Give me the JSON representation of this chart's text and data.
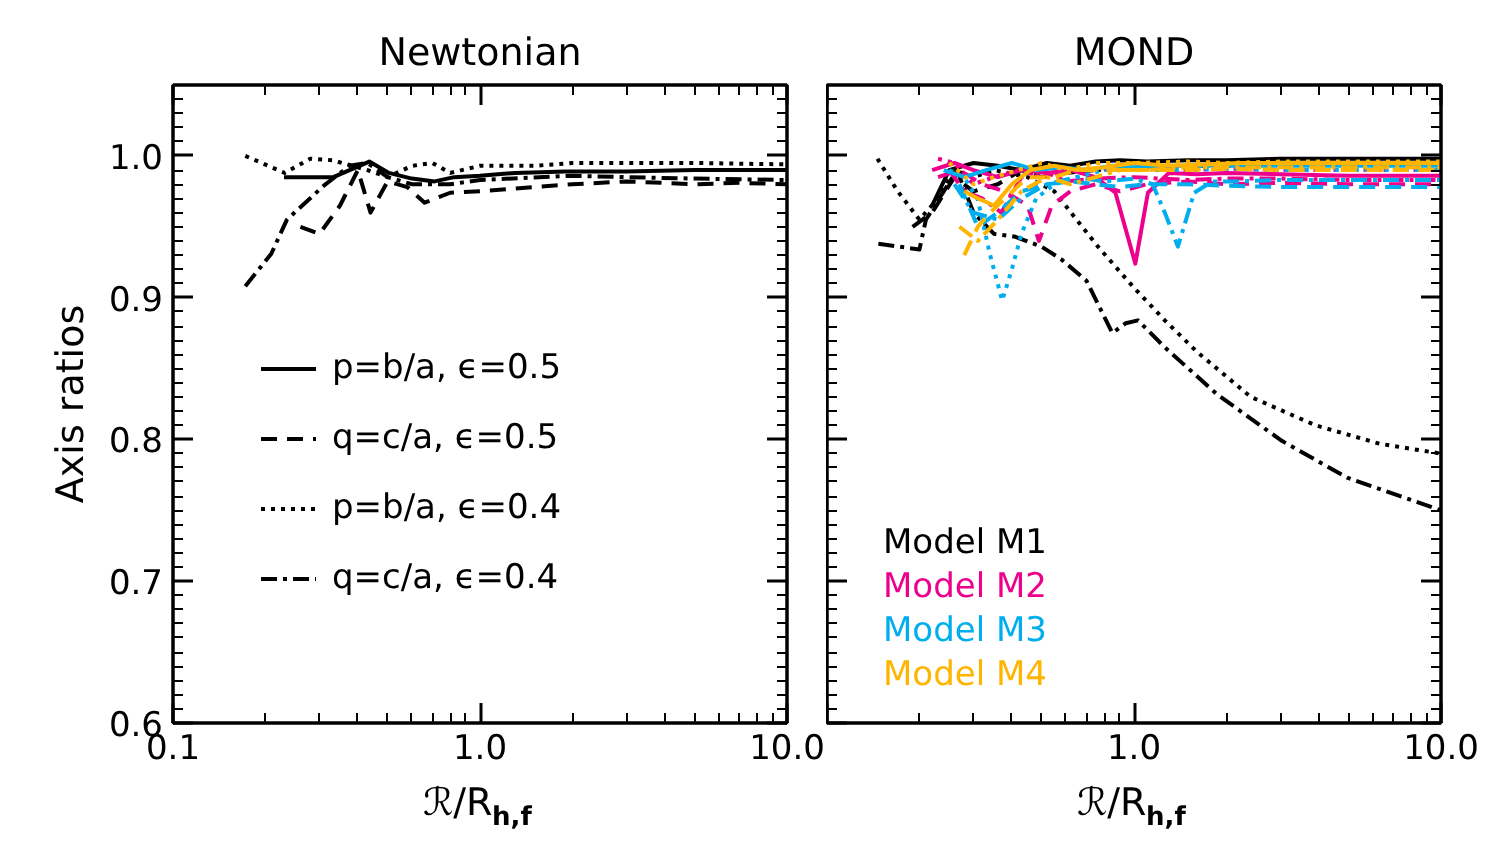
{
  "chart_data": [
    {
      "type": "line",
      "title": "Newtonian",
      "xlabel": "ℛ/R$_{h,f}$",
      "ylabel": "Axis ratios",
      "log": "x",
      "xlim": [
        0.1,
        10
      ],
      "ylim": [
        0.6,
        1.05
      ],
      "xticks": [
        0.1,
        {
          "value": 1,
          "label": "1.0"
        },
        {
          "value": 10,
          "label": "10.0"
        }
      ],
      "yticks": [
        0.6,
        0.7,
        0.8,
        0.9,
        {
          "value": 1.0,
          "label": "1.0"
        }
      ],
      "legend": "left",
      "series": [
        {
          "name": "p=b/a, ϵ=0.5",
          "color": "#000000",
          "line_style": "solid",
          "x": [
            0.23,
            0.333,
            0.436,
            0.505,
            0.6,
            0.711,
            0.824,
            1.0,
            1.3,
            1.9,
            3,
            5,
            7,
            10
          ],
          "values": [
            0.985,
            0.985,
            0.996,
            0.988,
            0.984,
            0.982,
            0.985,
            0.986,
            0.988,
            0.989,
            0.989,
            0.99,
            0.99,
            0.99
          ]
        },
        {
          "name": "q=c/a, ϵ=0.5",
          "color": "#000000",
          "line_style": "dashed",
          "x": [
            0.26,
            0.3,
            0.35,
            0.4,
            0.44,
            0.5,
            0.58,
            0.66,
            0.8,
            1.0,
            1.5,
            2,
            3,
            5,
            7,
            10
          ],
          "values": [
            0.95,
            0.945,
            0.965,
            0.99,
            0.96,
            0.982,
            0.978,
            0.967,
            0.974,
            0.975,
            0.978,
            0.98,
            0.982,
            0.98,
            0.981,
            0.98
          ]
        },
        {
          "name": "p=b/a, ϵ=0.4",
          "color": "#000000",
          "line_style": "dotted",
          "x": [
            0.172,
            0.231,
            0.28,
            0.33,
            0.43,
            0.5,
            0.6,
            0.7,
            0.8,
            1.0,
            1.5,
            2,
            3,
            5,
            10
          ],
          "values": [
            1.0,
            0.988,
            0.998,
            0.997,
            0.99,
            0.985,
            0.993,
            0.995,
            0.988,
            0.993,
            0.993,
            0.995,
            0.995,
            0.995,
            0.994
          ]
        },
        {
          "name": "q=c/a, ϵ=0.4",
          "color": "#000000",
          "line_style": "dashdot",
          "x": [
            0.172,
            0.209,
            0.235,
            0.31,
            0.376,
            0.43,
            0.5,
            0.6,
            0.8,
            1.0,
            2,
            3,
            5,
            10
          ],
          "values": [
            0.908,
            0.931,
            0.955,
            0.979,
            0.993,
            0.995,
            0.985,
            0.98,
            0.98,
            0.983,
            0.986,
            0.985,
            0.984,
            0.983
          ]
        }
      ]
    },
    {
      "type": "line",
      "title": "MOND",
      "xlabel": "ℛ/R$_{h,f}$",
      "log": "x",
      "xlim": [
        0.1,
        10
      ],
      "ylim": [
        0.6,
        1.05
      ],
      "xticks": [
        {
          "value": 0.1,
          "label": null
        },
        {
          "value": 1,
          "label": "1.0"
        },
        {
          "value": 10,
          "label": "10.0"
        }
      ],
      "yticks": [
        0.6,
        0.7,
        0.8,
        0.9,
        1.0
      ],
      "tick_labels": "x",
      "legend": "bottom left",
      "series": [
        {
          "name": "Model M1",
          "color": "#000000",
          "line_style": "solid",
          "x": [
            0.22,
            0.25,
            0.3,
            0.36,
            0.43,
            0.52,
            0.62,
            0.75,
            0.9,
            1.1,
            1.5,
            2,
            3,
            5,
            10
          ],
          "values": [
            0.965,
            0.99,
            0.995,
            0.993,
            0.99,
            0.995,
            0.993,
            0.996,
            0.997,
            0.996,
            0.997,
            0.997,
            0.998,
            0.998,
            0.998
          ]
        },
        {
          "color": "#000000",
          "line_style": "dashed",
          "x": [
            0.19,
            0.22,
            0.26,
            0.3,
            0.36,
            0.43,
            0.5,
            0.6,
            0.75,
            1,
            1.5,
            2,
            3,
            5,
            10
          ],
          "values": [
            0.95,
            0.96,
            0.985,
            0.975,
            0.98,
            0.99,
            0.985,
            0.988,
            0.99,
            0.992,
            0.993,
            0.993,
            0.994,
            0.994,
            0.994
          ]
        },
        {
          "color": "#000000",
          "line_style": "dotted",
          "x": [
            0.146,
            0.17,
            0.2,
            0.23,
            0.26,
            0.3,
            0.35,
            0.45,
            0.55,
            0.65,
            0.77,
            1.0,
            1.26,
            1.6,
            2.4,
            3.9,
            6.3,
            10
          ],
          "values": [
            0.998,
            0.975,
            0.955,
            0.97,
            0.99,
            0.985,
            0.99,
            0.985,
            0.975,
            0.955,
            0.935,
            0.907,
            0.884,
            0.862,
            0.83,
            0.81,
            0.797,
            0.79
          ]
        },
        {
          "color": "#000000",
          "line_style": "dashdot",
          "x": [
            0.147,
            0.2,
            0.21,
            0.24,
            0.265,
            0.3,
            0.35,
            0.41,
            0.5,
            0.58,
            0.7,
            0.85,
            0.94,
            1.03,
            1.26,
            1.86,
            3.03,
            4.95,
            10
          ],
          "values": [
            0.938,
            0.934,
            0.955,
            0.975,
            0.99,
            0.96,
            0.945,
            0.943,
            0.936,
            0.927,
            0.912,
            0.875,
            0.882,
            0.884,
            0.865,
            0.832,
            0.799,
            0.773,
            0.75
          ]
        },
        {
          "name": "Model M2",
          "color": "#ec008c",
          "line_style": "solid",
          "x": [
            0.22,
            0.26,
            0.3,
            0.36,
            0.43,
            0.52,
            0.62,
            0.75,
            0.87,
            1.01,
            1.11,
            1.3,
            1.6,
            2,
            3,
            5,
            10
          ],
          "values": [
            0.99,
            0.995,
            0.99,
            0.985,
            0.99,
            0.988,
            0.99,
            0.985,
            0.974,
            0.924,
            0.974,
            0.988,
            0.987,
            0.988,
            0.987,
            0.986,
            0.986
          ]
        },
        {
          "color": "#ec008c",
          "line_style": "dashed",
          "x": [
            0.23,
            0.27,
            0.32,
            0.38,
            0.45,
            0.49,
            0.54,
            0.62,
            0.75,
            0.9,
            1.1,
            1.5,
            2,
            3,
            5,
            10
          ],
          "values": [
            0.985,
            0.99,
            0.98,
            0.975,
            0.965,
            0.94,
            0.965,
            0.975,
            0.98,
            0.975,
            0.98,
            0.982,
            0.98,
            0.981,
            0.98,
            0.98
          ]
        },
        {
          "color": "#ec008c",
          "line_style": "dotted",
          "x": [
            0.23,
            0.26,
            0.3,
            0.35,
            0.42,
            0.5,
            0.6,
            0.75,
            1,
            1.5,
            2,
            3,
            5,
            10
          ],
          "values": [
            0.998,
            0.995,
            0.98,
            0.985,
            0.99,
            0.985,
            0.99,
            0.99,
            0.992,
            0.99,
            0.991,
            0.99,
            0.99,
            0.99
          ]
        },
        {
          "color": "#ec008c",
          "line_style": "dashdot",
          "x": [
            0.25,
            0.28,
            0.32,
            0.37,
            0.43,
            0.5,
            0.6,
            0.75,
            1,
            1.5,
            2,
            3,
            5,
            10
          ],
          "values": [
            0.99,
            0.975,
            0.97,
            0.96,
            0.985,
            0.99,
            0.982,
            0.984,
            0.985,
            0.983,
            0.984,
            0.984,
            0.983,
            0.983
          ]
        },
        {
          "name": "Model M3",
          "color": "#00aeef",
          "line_style": "solid",
          "x": [
            0.24,
            0.28,
            0.33,
            0.4,
            0.48,
            0.58,
            0.7,
            0.85,
            1,
            1.3,
            1.7,
            2.2,
            3,
            5,
            10
          ],
          "values": [
            0.99,
            0.985,
            0.99,
            0.995,
            0.99,
            0.992,
            0.99,
            0.993,
            0.992,
            0.993,
            0.993,
            0.993,
            0.993,
            0.993,
            0.993
          ]
        },
        {
          "color": "#00aeef",
          "line_style": "dashed",
          "x": [
            0.27,
            0.31,
            0.36,
            0.43,
            0.52,
            0.62,
            0.75,
            0.9,
            1.1,
            1.5,
            2,
            3,
            5,
            10
          ],
          "values": [
            0.98,
            0.95,
            0.96,
            0.975,
            0.98,
            0.982,
            0.98,
            0.978,
            0.98,
            0.98,
            0.979,
            0.978,
            0.978,
            0.978
          ]
        },
        {
          "color": "#00aeef",
          "line_style": "dotted",
          "x": [
            0.25,
            0.28,
            0.31,
            0.34,
            0.372,
            0.4,
            0.43,
            0.48,
            0.55,
            0.65,
            0.8,
            1,
            1.5,
            2,
            3,
            5,
            10
          ],
          "values": [
            0.99,
            0.985,
            0.969,
            0.93,
            0.898,
            0.92,
            0.945,
            0.97,
            0.98,
            0.985,
            0.99,
            0.99,
            0.99,
            0.991,
            0.99,
            0.99,
            0.99
          ]
        },
        {
          "color": "#00aeef",
          "line_style": "dashdot",
          "x": [
            0.26,
            0.3,
            0.36,
            0.43,
            0.52,
            0.65,
            0.8,
            1,
            1.15,
            1.26,
            1.39,
            1.57,
            1.8,
            2.2,
            3,
            5,
            10
          ],
          "values": [
            0.98,
            0.96,
            0.955,
            0.97,
            0.98,
            0.985,
            0.982,
            0.984,
            0.98,
            0.96,
            0.936,
            0.974,
            0.982,
            0.982,
            0.983,
            0.983,
            0.983
          ]
        },
        {
          "name": "Model M4",
          "color": "#ffb400",
          "line_style": "solid",
          "x": [
            0.28,
            0.31,
            0.35,
            0.4,
            0.46,
            0.55,
            0.65,
            0.8,
            1,
            1.3,
            1.7,
            2.2,
            3,
            5,
            10
          ],
          "values": [
            0.975,
            0.97,
            0.965,
            0.98,
            0.99,
            0.993,
            0.99,
            0.992,
            0.995,
            0.993,
            0.994,
            0.995,
            0.995,
            0.995,
            0.995
          ]
        },
        {
          "color": "#ffb400",
          "line_style": "dashed",
          "x": [
            0.28,
            0.31,
            0.34,
            0.38,
            0.45,
            0.55,
            0.65,
            0.8,
            1,
            1.5,
            2,
            3,
            5,
            10
          ],
          "values": [
            0.93,
            0.95,
            0.96,
            0.97,
            0.985,
            0.985,
            0.99,
            0.99,
            0.99,
            0.99,
            0.991,
            0.99,
            0.99,
            0.99
          ]
        },
        {
          "color": "#ffb400",
          "line_style": "dotted",
          "x": [
            0.25,
            0.3,
            0.35,
            0.42,
            0.5,
            0.6,
            0.75,
            1,
            1.5,
            2,
            3,
            5,
            10
          ],
          "values": [
            0.995,
            0.98,
            0.985,
            0.99,
            0.995,
            0.99,
            0.995,
            0.995,
            0.996,
            0.995,
            0.996,
            0.996,
            0.996
          ]
        },
        {
          "color": "#ffb400",
          "line_style": "dashdot",
          "x": [
            0.27,
            0.31,
            0.36,
            0.43,
            0.52,
            0.62,
            0.75,
            0.9,
            1.1,
            1.5,
            2,
            3,
            5,
            10
          ],
          "values": [
            0.95,
            0.94,
            0.955,
            0.975,
            0.985,
            0.98,
            0.985,
            0.99,
            0.99,
            0.992,
            0.992,
            0.992,
            0.992,
            0.992
          ]
        }
      ]
    }
  ]
}
